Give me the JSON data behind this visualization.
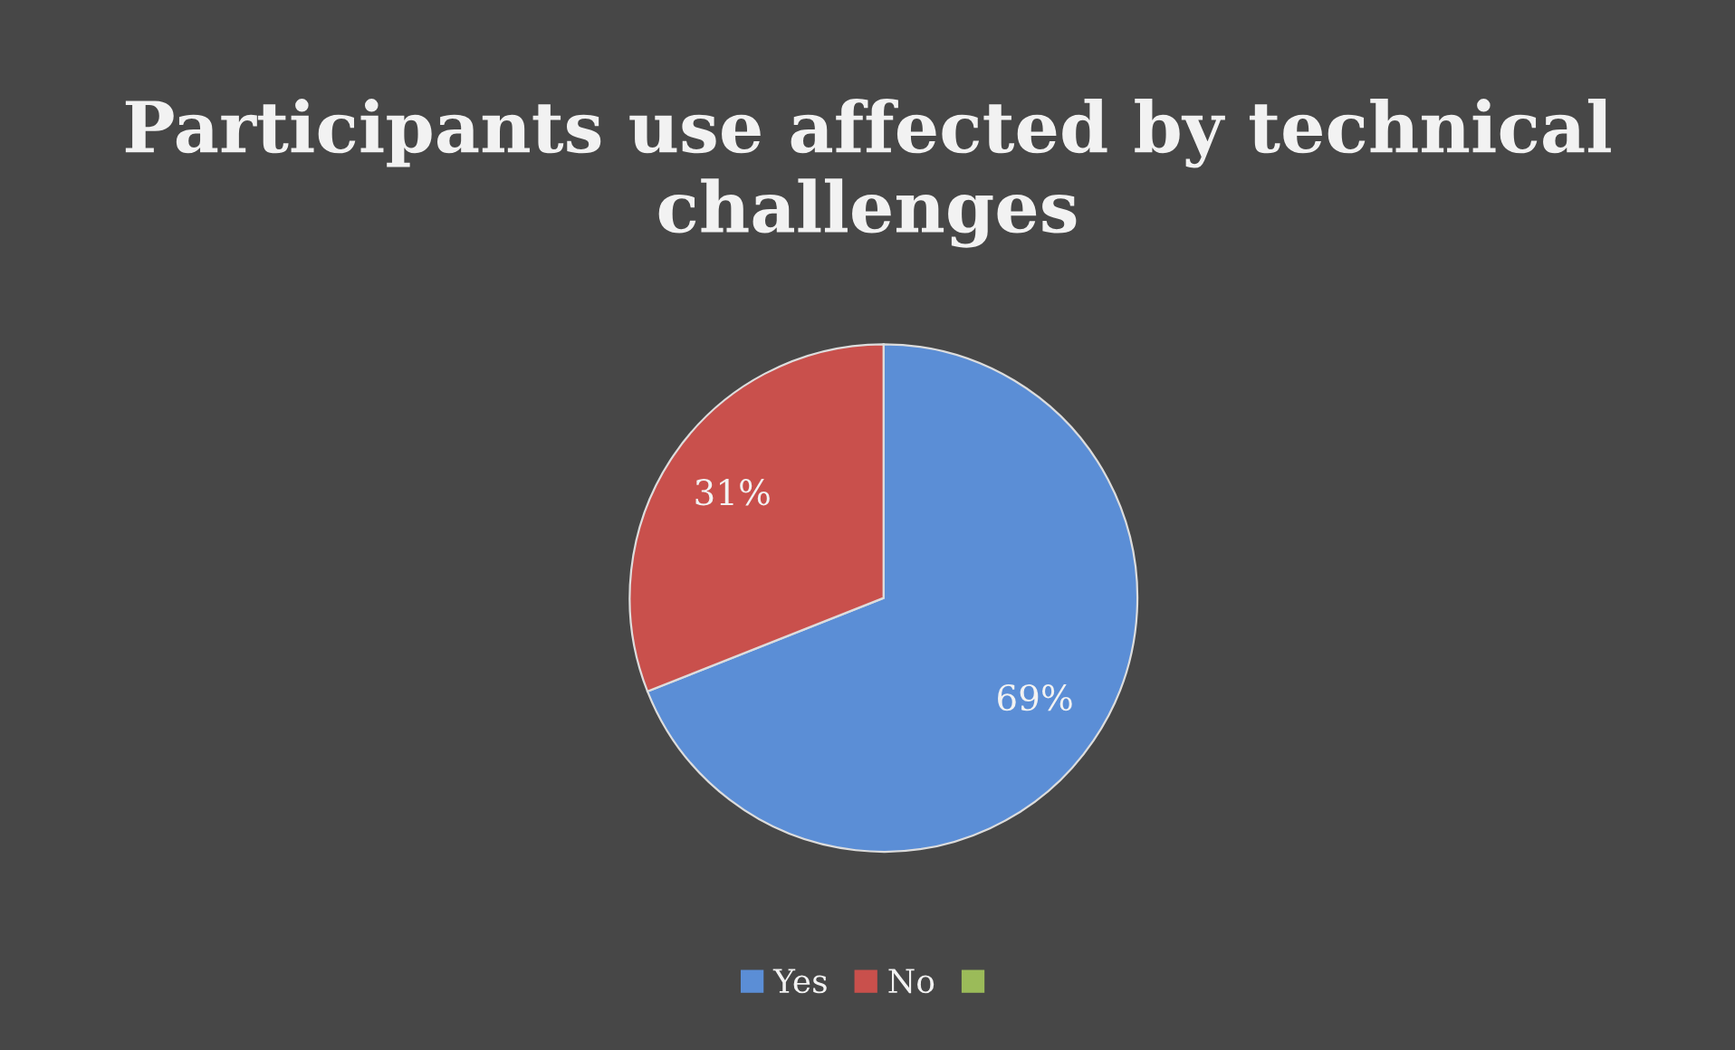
{
  "chart_data": {
    "type": "pie",
    "title": "Participants use affected by technical challenges",
    "categories": [
      "Yes",
      "No"
    ],
    "values": [
      69,
      31
    ],
    "colors": [
      "#5b8ed6",
      "#c9504c"
    ],
    "value_labels": [
      "69%",
      "31%"
    ],
    "legend": "bottom"
  }
}
